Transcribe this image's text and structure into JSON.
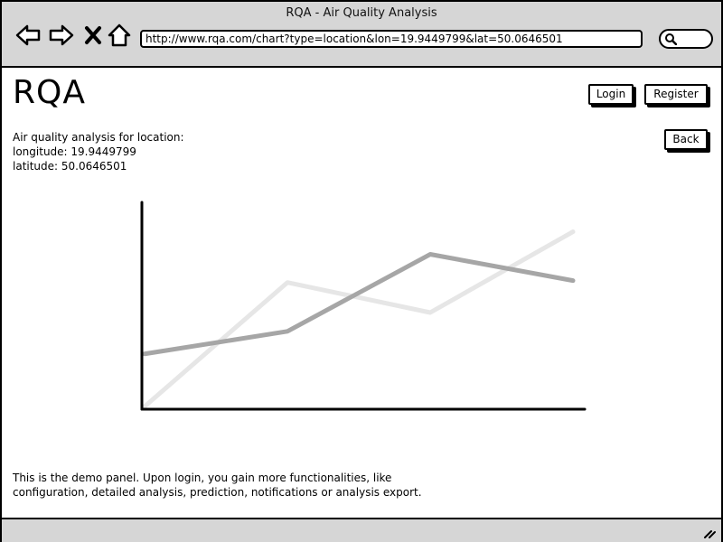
{
  "window": {
    "title": "RQA - Air Quality Analysis"
  },
  "toolbar": {
    "back_icon": "back-arrow-icon",
    "forward_icon": "forward-arrow-icon",
    "stop_icon": "close-icon",
    "home_icon": "home-icon",
    "url": "http://www.rqa.com/chart?type=location&lon=19.9449799&lat=50.0646501",
    "search_icon": "search-icon"
  },
  "header": {
    "logo": "RQA",
    "login_label": "Login",
    "register_label": "Register"
  },
  "main": {
    "back_label": "Back",
    "location": {
      "intro": "Air quality analysis for location:",
      "longitude": "longitude: 19.9449799",
      "latitude": "latitude: 50.0646501"
    },
    "demo_line1": "This is the demo panel. Upon login, you gain more functionalities, like",
    "demo_line2": "configuration, detailed analysis, prediction, notifications or analysis export."
  },
  "chart_data": {
    "type": "line",
    "x": [
      0,
      1,
      2,
      3
    ],
    "ylim": [
      0,
      100
    ],
    "series": [
      {
        "values": [
          28,
          40,
          81,
          67
        ],
        "color": "#a6a6a6"
      },
      {
        "values": [
          0,
          66,
          50,
          93
        ],
        "color": "#e6e6e6"
      }
    ]
  },
  "statusbar": {
    "resize_icon": "resize-grip-icon"
  }
}
